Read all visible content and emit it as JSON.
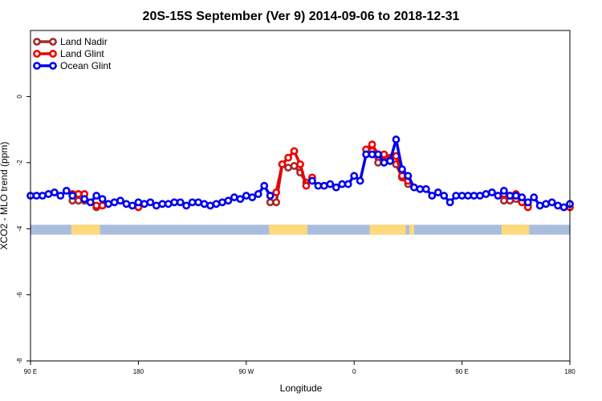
{
  "chart_data": {
    "type": "line",
    "title": "20S-15S September (Ver 9)   2014-09-06 to 2018-12-31",
    "xlabel": "Longitude",
    "ylabel": "XCO2 - MLO trend (ppm)",
    "xlim": [
      0,
      450
    ],
    "ylim": [
      -8,
      2
    ],
    "x_ticks": [
      {
        "value": 0,
        "label": "90 E"
      },
      {
        "value": 90,
        "label": "180"
      },
      {
        "value": 180,
        "label": "90 W"
      },
      {
        "value": 270,
        "label": "0"
      },
      {
        "value": 360,
        "label": "90 E"
      },
      {
        "value": 450,
        "label": "180"
      }
    ],
    "y_ticks": [
      {
        "value": 0,
        "label": "0"
      },
      {
        "value": -2,
        "label": "-2"
      },
      {
        "value": -4,
        "label": "-4"
      },
      {
        "value": -6,
        "label": "-6"
      },
      {
        "value": -8,
        "label": "-8"
      }
    ],
    "legend_position": "top-left",
    "series": [
      {
        "name": "Land Nadir",
        "color": "#a52a2a",
        "points": [
          [
            35,
            -3.15
          ],
          [
            40,
            -3.15
          ],
          [
            45,
            -3.15
          ],
          [
            55,
            -3.35
          ],
          [
            200,
            -3.2
          ],
          [
            205,
            -3.2
          ],
          [
            210,
            -2.05
          ],
          [
            215,
            -2.15
          ],
          [
            220,
            -2.1
          ],
          [
            225,
            -2.3
          ],
          [
            230,
            -2.6
          ],
          [
            285,
            -1.65
          ],
          [
            290,
            -2.0
          ],
          [
            295,
            -1.95
          ],
          [
            300,
            -1.85
          ],
          [
            305,
            -2.05
          ],
          [
            310,
            -2.45
          ],
          [
            315,
            -2.65
          ],
          [
            395,
            -3.15
          ],
          [
            400,
            -3.15
          ],
          [
            405,
            -3.1
          ],
          [
            410,
            -3.2
          ],
          [
            415,
            -3.3
          ]
        ]
      },
      {
        "name": "Land Glint",
        "color": "#ee0000",
        "points": [
          [
            35,
            -2.95
          ],
          [
            40,
            -2.95
          ],
          [
            45,
            -2.95
          ],
          [
            55,
            -3.3
          ],
          [
            60,
            -3.3
          ],
          [
            90,
            -3.35
          ],
          [
            200,
            -3.0
          ],
          [
            205,
            -2.9
          ],
          [
            210,
            -2.05
          ],
          [
            215,
            -1.85
          ],
          [
            220,
            -1.65
          ],
          [
            225,
            -2.05
          ],
          [
            230,
            -2.7
          ],
          [
            235,
            -2.45
          ],
          [
            280,
            -1.6
          ],
          [
            285,
            -1.45
          ],
          [
            290,
            -1.75
          ],
          [
            295,
            -1.75
          ],
          [
            300,
            -1.9
          ],
          [
            305,
            -1.8
          ],
          [
            310,
            -2.4
          ],
          [
            315,
            -2.55
          ],
          [
            395,
            -2.95
          ],
          [
            400,
            -3.0
          ],
          [
            405,
            -2.95
          ],
          [
            410,
            -3.2
          ],
          [
            415,
            -3.35
          ],
          [
            450,
            -3.35
          ]
        ]
      },
      {
        "name": "Ocean Glint",
        "color": "#0000ee",
        "points": [
          [
            0,
            -3.0
          ],
          [
            5,
            -3.0
          ],
          [
            10,
            -3.0
          ],
          [
            15,
            -2.95
          ],
          [
            20,
            -2.9
          ],
          [
            25,
            -3.0
          ],
          [
            30,
            -2.85
          ],
          [
            35,
            -3.0
          ],
          [
            45,
            -3.1
          ],
          [
            50,
            -3.2
          ],
          [
            55,
            -3.0
          ],
          [
            60,
            -3.1
          ],
          [
            65,
            -3.25
          ],
          [
            70,
            -3.2
          ],
          [
            75,
            -3.15
          ],
          [
            80,
            -3.25
          ],
          [
            85,
            -3.3
          ],
          [
            90,
            -3.2
          ],
          [
            95,
            -3.25
          ],
          [
            100,
            -3.2
          ],
          [
            105,
            -3.3
          ],
          [
            110,
            -3.25
          ],
          [
            115,
            -3.25
          ],
          [
            120,
            -3.2
          ],
          [
            125,
            -3.2
          ],
          [
            130,
            -3.3
          ],
          [
            135,
            -3.2
          ],
          [
            140,
            -3.2
          ],
          [
            145,
            -3.25
          ],
          [
            150,
            -3.3
          ],
          [
            155,
            -3.25
          ],
          [
            160,
            -3.2
          ],
          [
            165,
            -3.15
          ],
          [
            170,
            -3.05
          ],
          [
            175,
            -3.1
          ],
          [
            180,
            -3.0
          ],
          [
            185,
            -3.05
          ],
          [
            190,
            -2.95
          ],
          [
            195,
            -2.7
          ],
          [
            200,
            -3.0
          ],
          [
            235,
            -2.55
          ],
          [
            240,
            -2.7
          ],
          [
            245,
            -2.7
          ],
          [
            250,
            -2.65
          ],
          [
            255,
            -2.75
          ],
          [
            260,
            -2.65
          ],
          [
            265,
            -2.65
          ],
          [
            270,
            -2.4
          ],
          [
            275,
            -2.55
          ],
          [
            280,
            -1.75
          ],
          [
            285,
            -1.75
          ],
          [
            290,
            -1.75
          ],
          [
            295,
            -2.0
          ],
          [
            300,
            -1.95
          ],
          [
            305,
            -1.3
          ],
          [
            310,
            -2.2
          ],
          [
            315,
            -2.4
          ],
          [
            320,
            -2.75
          ],
          [
            325,
            -2.8
          ],
          [
            330,
            -2.8
          ],
          [
            335,
            -3.0
          ],
          [
            340,
            -2.9
          ],
          [
            345,
            -3.0
          ],
          [
            350,
            -3.2
          ],
          [
            355,
            -3.0
          ],
          [
            360,
            -3.0
          ],
          [
            365,
            -3.0
          ],
          [
            370,
            -3.0
          ],
          [
            375,
            -3.0
          ],
          [
            380,
            -2.95
          ],
          [
            385,
            -2.9
          ],
          [
            390,
            -3.0
          ],
          [
            395,
            -2.85
          ],
          [
            400,
            -3.0
          ],
          [
            405,
            -3.0
          ],
          [
            410,
            -3.05
          ],
          [
            415,
            -3.2
          ],
          [
            420,
            -3.05
          ],
          [
            425,
            -3.3
          ],
          [
            430,
            -3.25
          ],
          [
            435,
            -3.2
          ],
          [
            440,
            -3.3
          ],
          [
            445,
            -3.35
          ],
          [
            450,
            -3.25
          ]
        ]
      }
    ],
    "land_band": {
      "y_range": [
        -4.18,
        -3.88
      ],
      "ocean_color": "#a9bede",
      "land_color": "#ffd97a",
      "land_segments": [
        [
          34,
          58
        ],
        [
          199,
          231
        ],
        [
          283,
          313
        ],
        [
          316,
          320
        ],
        [
          393,
          416
        ]
      ]
    },
    "grid": false
  }
}
